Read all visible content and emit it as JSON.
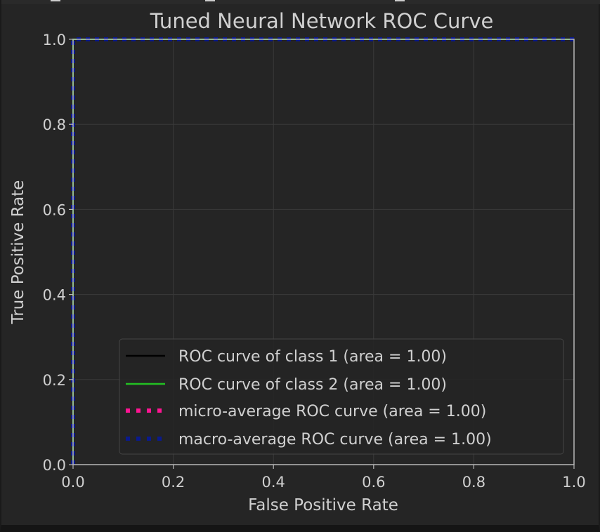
{
  "chart_data": {
    "type": "line",
    "title": "Tuned Neural Network ROC Curve",
    "xlabel": "False Positive Rate",
    "ylabel": "True Positive Rate",
    "xlim": [
      0.0,
      1.0
    ],
    "ylim": [
      0.0,
      1.0
    ],
    "xticks": [
      "0.0",
      "0.2",
      "0.4",
      "0.6",
      "0.8",
      "1.0"
    ],
    "yticks": [
      "0.0",
      "0.2",
      "0.4",
      "0.6",
      "0.8",
      "1.0"
    ],
    "grid": true,
    "legend_position": "lower-right",
    "series": [
      {
        "name": "ROC curve of class 1 (area = 1.00)",
        "color": "#000000",
        "style": "solid",
        "x": [
          0.0,
          0.0,
          1.0
        ],
        "y": [
          0.0,
          1.0,
          1.0
        ]
      },
      {
        "name": "ROC curve of class 2 (area = 1.00)",
        "color": "#22c022",
        "style": "solid",
        "x": [
          0.0,
          0.0,
          1.0
        ],
        "y": [
          0.0,
          1.0,
          1.0
        ]
      },
      {
        "name": "micro-average ROC curve (area = 1.00)",
        "color": "#ff1493",
        "style": "dotted",
        "x": [
          0.0,
          0.0,
          1.0
        ],
        "y": [
          0.0,
          1.0,
          1.0
        ]
      },
      {
        "name": "macro-average ROC curve (area = 1.00)",
        "color": "#0a1a8c",
        "style": "dotted",
        "x": [
          0.0,
          0.0,
          1.0
        ],
        "y": [
          0.0,
          1.0,
          1.0
        ]
      }
    ]
  }
}
